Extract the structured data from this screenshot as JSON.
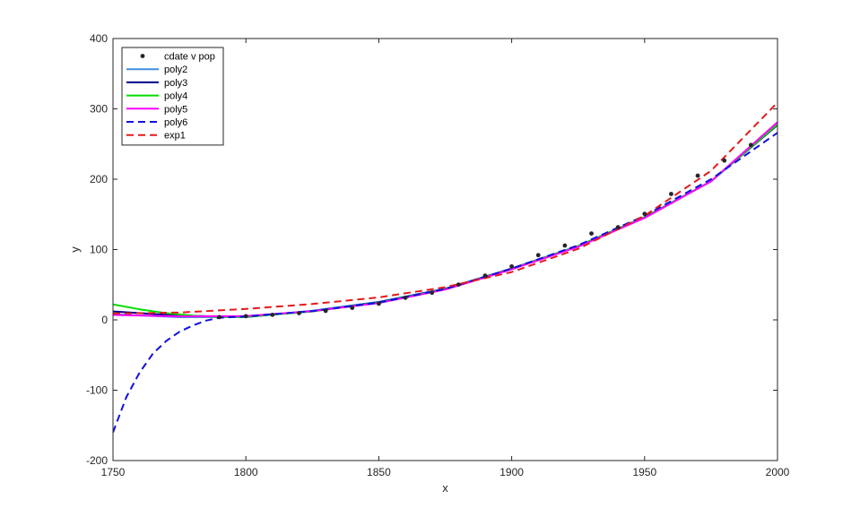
{
  "chart_data": {
    "type": "scatter",
    "xlabel": "x",
    "ylabel": "y",
    "xlim": [
      1750,
      2000
    ],
    "ylim": [
      -200,
      400
    ],
    "x_ticks": [
      1750,
      1800,
      1850,
      1900,
      1950,
      2000
    ],
    "y_ticks": [
      -200,
      -100,
      0,
      100,
      200,
      300,
      400
    ],
    "x_tick_labels": [
      "1750",
      "1800",
      "1850",
      "1900",
      "1950",
      "2000"
    ],
    "y_tick_labels": [
      "-200",
      "-100",
      "0",
      "100",
      "200",
      "300",
      "400"
    ],
    "grid": false,
    "legend_position": "top-left",
    "points": {
      "name": "cdate v pop",
      "color": "#262626",
      "x": [
        1790,
        1800,
        1810,
        1820,
        1830,
        1840,
        1850,
        1860,
        1870,
        1880,
        1890,
        1900,
        1910,
        1920,
        1930,
        1940,
        1950,
        1960,
        1970,
        1980,
        1990
      ],
      "y": [
        3.9,
        5.3,
        7.2,
        9.6,
        12.9,
        17.1,
        23.1,
        31.4,
        38.6,
        50.2,
        62.9,
        76.0,
        92.0,
        105.7,
        122.8,
        131.7,
        150.7,
        179.0,
        205.0,
        226.5,
        248.7
      ]
    },
    "series": [
      {
        "name": "poly2",
        "color": "#3F8FDB",
        "dash": "solid",
        "x": [
          1750,
          1775,
          1800,
          1825,
          1850,
          1875,
          1900,
          1925,
          1950,
          1975,
          2000
        ],
        "y": [
          8,
          3.8,
          4,
          13,
          25.6,
          44.5,
          72.5,
          105,
          146,
          197,
          280
        ]
      },
      {
        "name": "poly3",
        "color": "#00008B",
        "dash": "solid",
        "x": [
          1750,
          1775,
          1800,
          1825,
          1850,
          1875,
          1900,
          1925,
          1950,
          1975,
          2000
        ],
        "y": [
          12,
          6,
          4.2,
          12.5,
          25,
          44,
          73,
          105,
          146,
          197,
          277
        ]
      },
      {
        "name": "poly4",
        "color": "#00DD00",
        "dash": "solid",
        "x": [
          1750,
          1760,
          1770,
          1780,
          1790,
          1800,
          1825,
          1850,
          1875,
          1900,
          1925,
          1950,
          1975,
          2000
        ],
        "y": [
          22,
          15,
          9.5,
          6,
          4.2,
          4.5,
          12,
          24.5,
          43.5,
          72.5,
          105,
          146,
          197,
          278
        ]
      },
      {
        "name": "poly5",
        "color": "#FF00FF",
        "dash": "solid",
        "x": [
          1750,
          1775,
          1800,
          1825,
          1850,
          1875,
          1900,
          1925,
          1950,
          1975,
          2000
        ],
        "y": [
          7,
          5,
          5.3,
          12.5,
          24,
          43,
          72,
          104,
          145,
          197,
          281
        ]
      },
      {
        "name": "poly6",
        "color": "#1010E0",
        "dash": "dashed",
        "x": [
          1750,
          1755,
          1760,
          1765,
          1770,
          1775,
          1780,
          1785,
          1790,
          1800,
          1825,
          1850,
          1875,
          1900,
          1925,
          1950,
          1975,
          2000
        ],
        "y": [
          -160,
          -110,
          -75,
          -48,
          -30,
          -17,
          -8,
          -1,
          3,
          5,
          12.5,
          24.5,
          44,
          73,
          106,
          148,
          200,
          266
        ]
      },
      {
        "name": "exp1",
        "color": "#E41A1C",
        "dash": "dashed",
        "x": [
          1750,
          1775,
          1800,
          1825,
          1850,
          1875,
          1900,
          1925,
          1950,
          1975,
          2000
        ],
        "y": [
          9,
          10.5,
          15.5,
          22.5,
          32,
          46.5,
          68,
          101,
          148,
          212,
          309
        ]
      }
    ]
  }
}
